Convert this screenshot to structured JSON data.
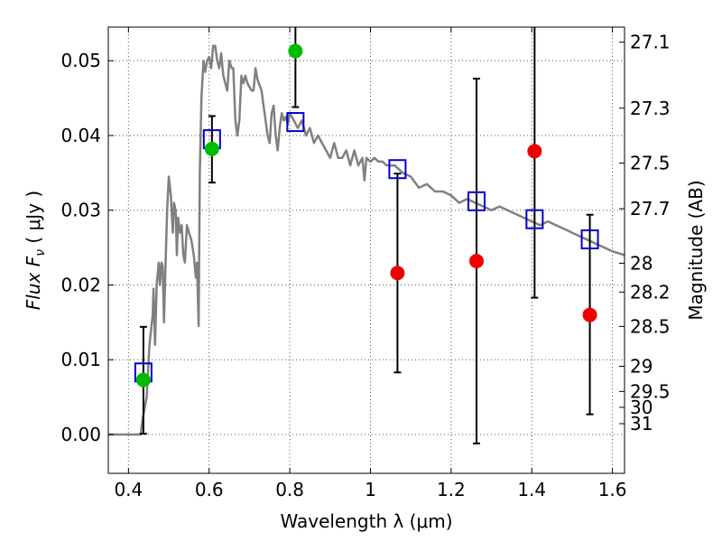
{
  "chart_data": {
    "type": "scatter",
    "xlabel": "Wavelength  λ (μm)",
    "ylabel": "Flux  F",
    "ylabel_sub": "ν",
    "ylabel_unit": "  ( μJy )",
    "y2label": "Magnitude (AB)",
    "xlim": [
      0.35,
      1.63
    ],
    "ylim": [
      -0.0052,
      0.0545
    ],
    "grid": true,
    "x_ticks": [
      {
        "value": 0.4,
        "label": "0.4"
      },
      {
        "value": 0.6,
        "label": "0.6"
      },
      {
        "value": 0.8,
        "label": "0.8"
      },
      {
        "value": 1.0,
        "label": "1"
      },
      {
        "value": 1.2,
        "label": "1.2"
      },
      {
        "value": 1.4,
        "label": "1.4"
      },
      {
        "value": 1.6,
        "label": "1.6"
      }
    ],
    "y_ticks": [
      {
        "value": 0.0,
        "label": "0.00"
      },
      {
        "value": 0.01,
        "label": "0.01"
      },
      {
        "value": 0.02,
        "label": "0.02"
      },
      {
        "value": 0.03,
        "label": "0.03"
      },
      {
        "value": 0.04,
        "label": "0.04"
      },
      {
        "value": 0.05,
        "label": "0.05"
      }
    ],
    "y2_ticks": [
      {
        "value": 27.1,
        "label": "27.1"
      },
      {
        "value": 27.3,
        "label": "27.3"
      },
      {
        "value": 27.5,
        "label": "27.5"
      },
      {
        "value": 27.7,
        "label": "27.7"
      },
      {
        "value": 28.0,
        "label": "28"
      },
      {
        "value": 28.2,
        "label": "28.2"
      },
      {
        "value": 28.5,
        "label": "28.5"
      },
      {
        "value": 29.0,
        "label": "29"
      },
      {
        "value": 29.5,
        "label": "29.5"
      },
      {
        "value": 30.0,
        "label": "30"
      },
      {
        "value": 31.0,
        "label": "31"
      }
    ],
    "colors": {
      "model": "#808080",
      "model_points": "#0000cc",
      "detections": "#00bb00",
      "nondetections": "#ee0000",
      "errorbar": "#000000",
      "grid": "#555555"
    },
    "model_spectrum": [
      [
        0.35,
        0.0
      ],
      [
        0.43,
        0.0
      ],
      [
        0.435,
        0.002
      ],
      [
        0.445,
        0.005
      ],
      [
        0.452,
        0.012
      ],
      [
        0.46,
        0.016
      ],
      [
        0.462,
        0.0195
      ],
      [
        0.466,
        0.012
      ],
      [
        0.47,
        0.02
      ],
      [
        0.475,
        0.023
      ],
      [
        0.478,
        0.02
      ],
      [
        0.482,
        0.023
      ],
      [
        0.485,
        0.0225
      ],
      [
        0.488,
        0.015
      ],
      [
        0.492,
        0.023
      ],
      [
        0.496,
        0.03
      ],
      [
        0.5,
        0.0345
      ],
      [
        0.505,
        0.032
      ],
      [
        0.51,
        0.027
      ],
      [
        0.513,
        0.031
      ],
      [
        0.517,
        0.03
      ],
      [
        0.52,
        0.024
      ],
      [
        0.523,
        0.029
      ],
      [
        0.528,
        0.027
      ],
      [
        0.532,
        0.028
      ],
      [
        0.536,
        0.024
      ],
      [
        0.54,
        0.023
      ],
      [
        0.545,
        0.028
      ],
      [
        0.55,
        0.027
      ],
      [
        0.556,
        0.026
      ],
      [
        0.562,
        0.024
      ],
      [
        0.567,
        0.021
      ],
      [
        0.57,
        0.023
      ],
      [
        0.574,
        0.0145
      ],
      [
        0.577,
        0.035
      ],
      [
        0.581,
        0.045
      ],
      [
        0.586,
        0.05
      ],
      [
        0.59,
        0.0485
      ],
      [
        0.595,
        0.05
      ],
      [
        0.6,
        0.0505
      ],
      [
        0.605,
        0.049
      ],
      [
        0.61,
        0.052
      ],
      [
        0.615,
        0.052
      ],
      [
        0.62,
        0.05
      ],
      [
        0.625,
        0.049
      ],
      [
        0.63,
        0.051
      ],
      [
        0.635,
        0.048
      ],
      [
        0.64,
        0.047
      ],
      [
        0.645,
        0.046
      ],
      [
        0.65,
        0.05
      ],
      [
        0.656,
        0.049
      ],
      [
        0.66,
        0.049
      ],
      [
        0.665,
        0.042
      ],
      [
        0.67,
        0.04
      ],
      [
        0.675,
        0.042
      ],
      [
        0.68,
        0.048
      ],
      [
        0.685,
        0.047
      ],
      [
        0.69,
        0.048
      ],
      [
        0.695,
        0.047
      ],
      [
        0.7,
        0.0465
      ],
      [
        0.705,
        0.046
      ],
      [
        0.71,
        0.046
      ],
      [
        0.715,
        0.049
      ],
      [
        0.72,
        0.0475
      ],
      [
        0.73,
        0.046
      ],
      [
        0.735,
        0.044
      ],
      [
        0.74,
        0.042
      ],
      [
        0.745,
        0.04
      ],
      [
        0.75,
        0.039
      ],
      [
        0.755,
        0.043
      ],
      [
        0.76,
        0.044
      ],
      [
        0.765,
        0.04
      ],
      [
        0.77,
        0.038
      ],
      [
        0.775,
        0.041
      ],
      [
        0.78,
        0.043
      ],
      [
        0.785,
        0.042
      ],
      [
        0.79,
        0.0425
      ],
      [
        0.795,
        0.0415
      ],
      [
        0.8,
        0.043
      ],
      [
        0.81,
        0.042
      ],
      [
        0.82,
        0.041
      ],
      [
        0.83,
        0.042
      ],
      [
        0.84,
        0.04
      ],
      [
        0.85,
        0.041
      ],
      [
        0.86,
        0.039
      ],
      [
        0.87,
        0.04
      ],
      [
        0.88,
        0.039
      ],
      [
        0.89,
        0.038
      ],
      [
        0.9,
        0.037
      ],
      [
        0.91,
        0.039
      ],
      [
        0.92,
        0.037
      ],
      [
        0.93,
        0.037
      ],
      [
        0.94,
        0.038
      ],
      [
        0.95,
        0.036
      ],
      [
        0.96,
        0.038
      ],
      [
        0.97,
        0.036
      ],
      [
        0.98,
        0.037
      ],
      [
        0.985,
        0.034
      ],
      [
        0.99,
        0.037
      ],
      [
        1.0,
        0.0365
      ],
      [
        1.01,
        0.037
      ],
      [
        1.02,
        0.0365
      ],
      [
        1.03,
        0.0365
      ],
      [
        1.04,
        0.036
      ],
      [
        1.06,
        0.036
      ],
      [
        1.08,
        0.035
      ],
      [
        1.1,
        0.0345
      ],
      [
        1.12,
        0.033
      ],
      [
        1.14,
        0.0335
      ],
      [
        1.16,
        0.0325
      ],
      [
        1.18,
        0.0325
      ],
      [
        1.2,
        0.032
      ],
      [
        1.22,
        0.031
      ],
      [
        1.24,
        0.0315
      ],
      [
        1.26,
        0.031
      ],
      [
        1.28,
        0.0305
      ],
      [
        1.3,
        0.03
      ],
      [
        1.32,
        0.0305
      ],
      [
        1.34,
        0.03
      ],
      [
        1.36,
        0.0295
      ],
      [
        1.38,
        0.029
      ],
      [
        1.4,
        0.0285
      ],
      [
        1.42,
        0.028
      ],
      [
        1.44,
        0.0285
      ],
      [
        1.46,
        0.028
      ],
      [
        1.48,
        0.0275
      ],
      [
        1.5,
        0.027
      ],
      [
        1.52,
        0.0265
      ],
      [
        1.54,
        0.026
      ],
      [
        1.56,
        0.0255
      ],
      [
        1.58,
        0.025
      ],
      [
        1.6,
        0.0245
      ],
      [
        1.63,
        0.024
      ]
    ],
    "model_points": [
      {
        "x": 0.437,
        "y": 0.0083
      },
      {
        "x": 0.607,
        "y": 0.0395
      },
      {
        "x": 0.814,
        "y": 0.0418
      },
      {
        "x": 1.067,
        "y": 0.0355
      },
      {
        "x": 1.263,
        "y": 0.0312
      },
      {
        "x": 1.407,
        "y": 0.0288
      },
      {
        "x": 1.544,
        "y": 0.0261
      }
    ],
    "detections": [
      {
        "x": 0.437,
        "y": 0.0073,
        "ylo": 0.0001,
        "yhi": 0.0144
      },
      {
        "x": 0.607,
        "y": 0.0382,
        "ylo": 0.0337,
        "yhi": 0.0426
      },
      {
        "x": 0.814,
        "y": 0.0513,
        "ylo": 0.0438,
        "yhi": 0.0545
      }
    ],
    "nondetections": [
      {
        "x": 1.067,
        "y": 0.0216,
        "ylo": 0.0083,
        "yhi": 0.0349
      },
      {
        "x": 1.263,
        "y": 0.0232,
        "ylo": -0.0012,
        "yhi": 0.0476
      },
      {
        "x": 1.407,
        "y": 0.0379,
        "ylo": 0.0183,
        "yhi": 0.0545
      },
      {
        "x": 1.544,
        "y": 0.016,
        "ylo": 0.0027,
        "yhi": 0.0294
      }
    ]
  }
}
